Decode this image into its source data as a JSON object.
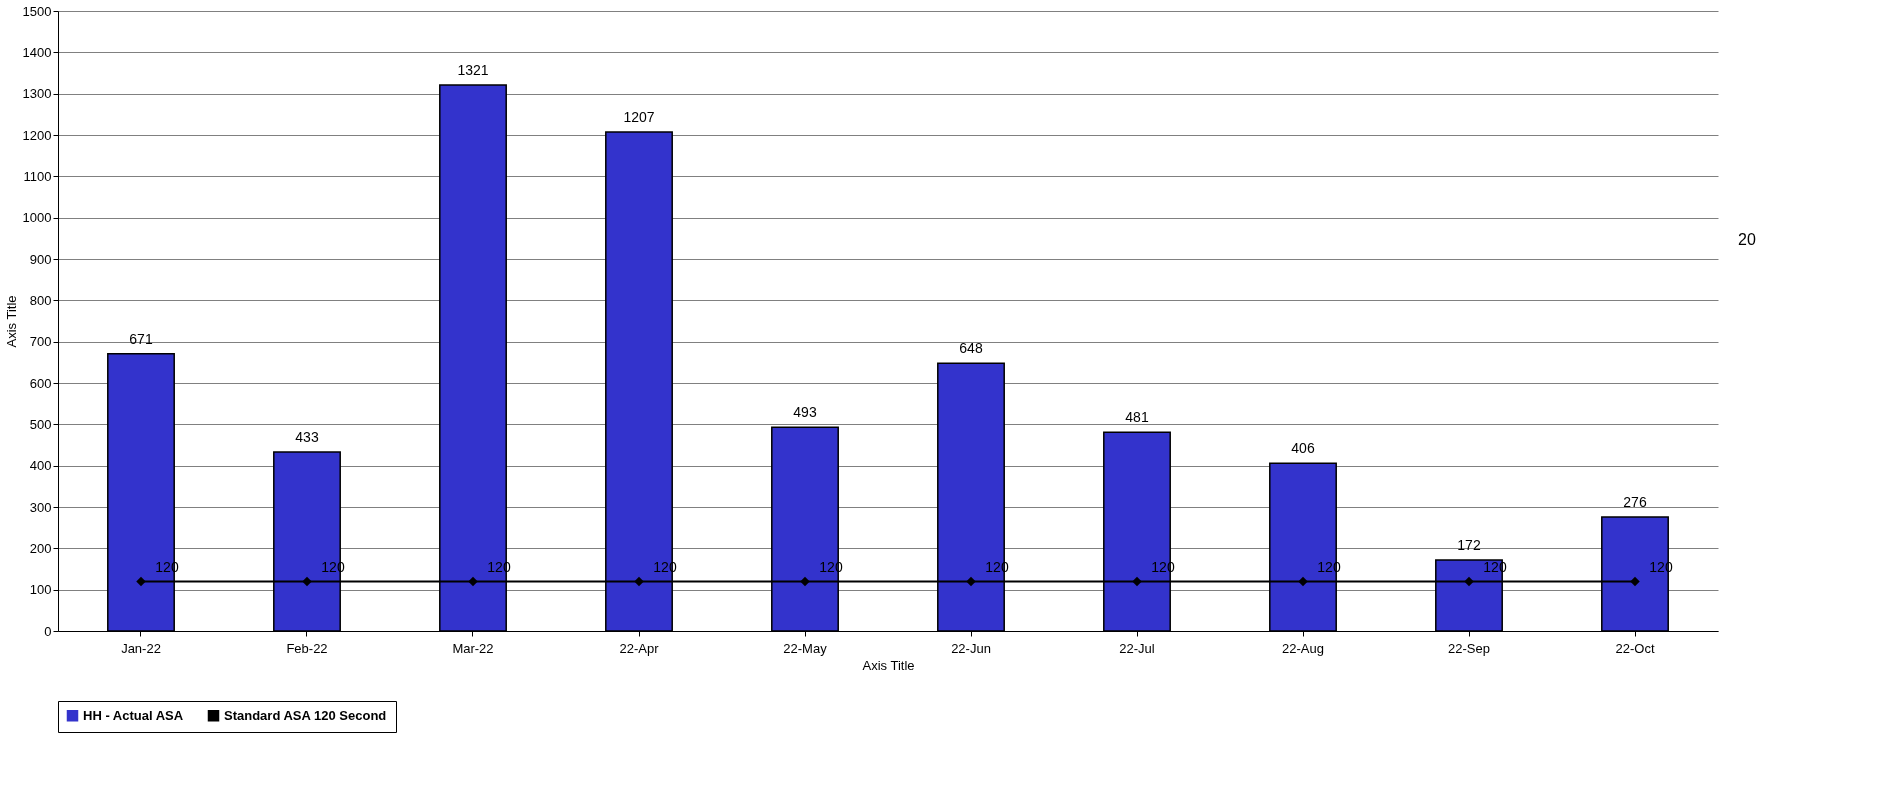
{
  "chart_data": {
    "type": "bar",
    "xlabel": "Axis Title",
    "ylabel": "Axis Title",
    "categories": [
      "Jan-22",
      "Feb-22",
      "Mar-22",
      "22-Apr",
      "22-May",
      "22-Jun",
      "22-Jul",
      "22-Aug",
      "22-Sep",
      "22-Oct"
    ],
    "series": [
      {
        "name": "HH - Actual ASA",
        "color": "#3333cc",
        "values": [
          671,
          433,
          1321,
          1207,
          493,
          648,
          481,
          406,
          172,
          276
        ]
      },
      {
        "name": "Standard ASA 120 Second",
        "type": "line",
        "color": "#000000",
        "values": [
          120,
          120,
          120,
          120,
          120,
          120,
          120,
          120,
          120,
          120
        ]
      }
    ],
    "ylim": [
      0,
      1500
    ],
    "yticks": [
      0,
      100,
      200,
      300,
      400,
      500,
      600,
      700,
      800,
      900,
      1000,
      1100,
      1200,
      1300,
      1400,
      1500
    ],
    "grid": "y",
    "legend": "bottom left",
    "data_labels": true,
    "marker": "diamond",
    "line_style": "solid",
    "annotations": [
      "20"
    ]
  }
}
